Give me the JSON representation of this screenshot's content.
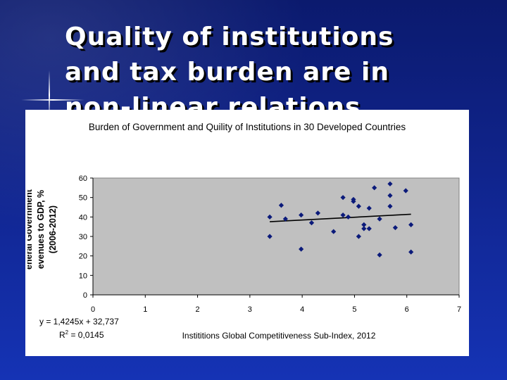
{
  "slide": {
    "title": "Quality of institutions\nand tax burden are in\nnon-linear relations"
  },
  "chart_data": {
    "type": "scatter",
    "title": "Burden of Government and Quility of Institutions in 30 Developed Countries",
    "xlabel": "Instititions Global Competitiveness Sub-Index, 2012",
    "ylabel": "eneral Government\nevenues to GDP, %\n(2006-2012)",
    "xlim": [
      0,
      7
    ],
    "ylim": [
      0,
      60
    ],
    "x_ticks": [
      "0",
      "1",
      "2",
      "3",
      "4",
      "5",
      "6",
      "7"
    ],
    "y_ticks": [
      "0",
      "10",
      "20",
      "30",
      "40",
      "50",
      "60"
    ],
    "plot_background": "#c0c0c0",
    "marker_color": "#0b1a7a",
    "points": [
      {
        "x": 3.38,
        "y": 40
      },
      {
        "x": 3.38,
        "y": 30
      },
      {
        "x": 3.6,
        "y": 46
      },
      {
        "x": 3.68,
        "y": 39
      },
      {
        "x": 3.98,
        "y": 41
      },
      {
        "x": 3.98,
        "y": 23.5
      },
      {
        "x": 4.18,
        "y": 37
      },
      {
        "x": 4.3,
        "y": 42
      },
      {
        "x": 4.6,
        "y": 32.5
      },
      {
        "x": 4.78,
        "y": 50
      },
      {
        "x": 4.78,
        "y": 41
      },
      {
        "x": 4.88,
        "y": 40
      },
      {
        "x": 4.98,
        "y": 49
      },
      {
        "x": 4.98,
        "y": 48
      },
      {
        "x": 5.08,
        "y": 45.5
      },
      {
        "x": 5.08,
        "y": 30
      },
      {
        "x": 5.18,
        "y": 36
      },
      {
        "x": 5.18,
        "y": 34
      },
      {
        "x": 5.28,
        "y": 44.5
      },
      {
        "x": 5.28,
        "y": 34
      },
      {
        "x": 5.38,
        "y": 55
      },
      {
        "x": 5.48,
        "y": 39
      },
      {
        "x": 5.48,
        "y": 20.5
      },
      {
        "x": 5.68,
        "y": 57
      },
      {
        "x": 5.68,
        "y": 51
      },
      {
        "x": 5.68,
        "y": 45.5
      },
      {
        "x": 5.78,
        "y": 34.5
      },
      {
        "x": 5.98,
        "y": 53.5
      },
      {
        "x": 6.08,
        "y": 36
      },
      {
        "x": 6.08,
        "y": 22
      }
    ],
    "trendline": {
      "type": "linear",
      "x_range": [
        3.38,
        6.08
      ],
      "slope": 1.4245,
      "intercept": 32.737,
      "color": "#000000"
    },
    "annotations": {
      "equation": "y = 1,4245x + 32,737",
      "r2_prefix": "R",
      "r2_exponent": "2",
      "r2_value": " = 0,0145"
    },
    "grid": false,
    "legend": "none"
  }
}
